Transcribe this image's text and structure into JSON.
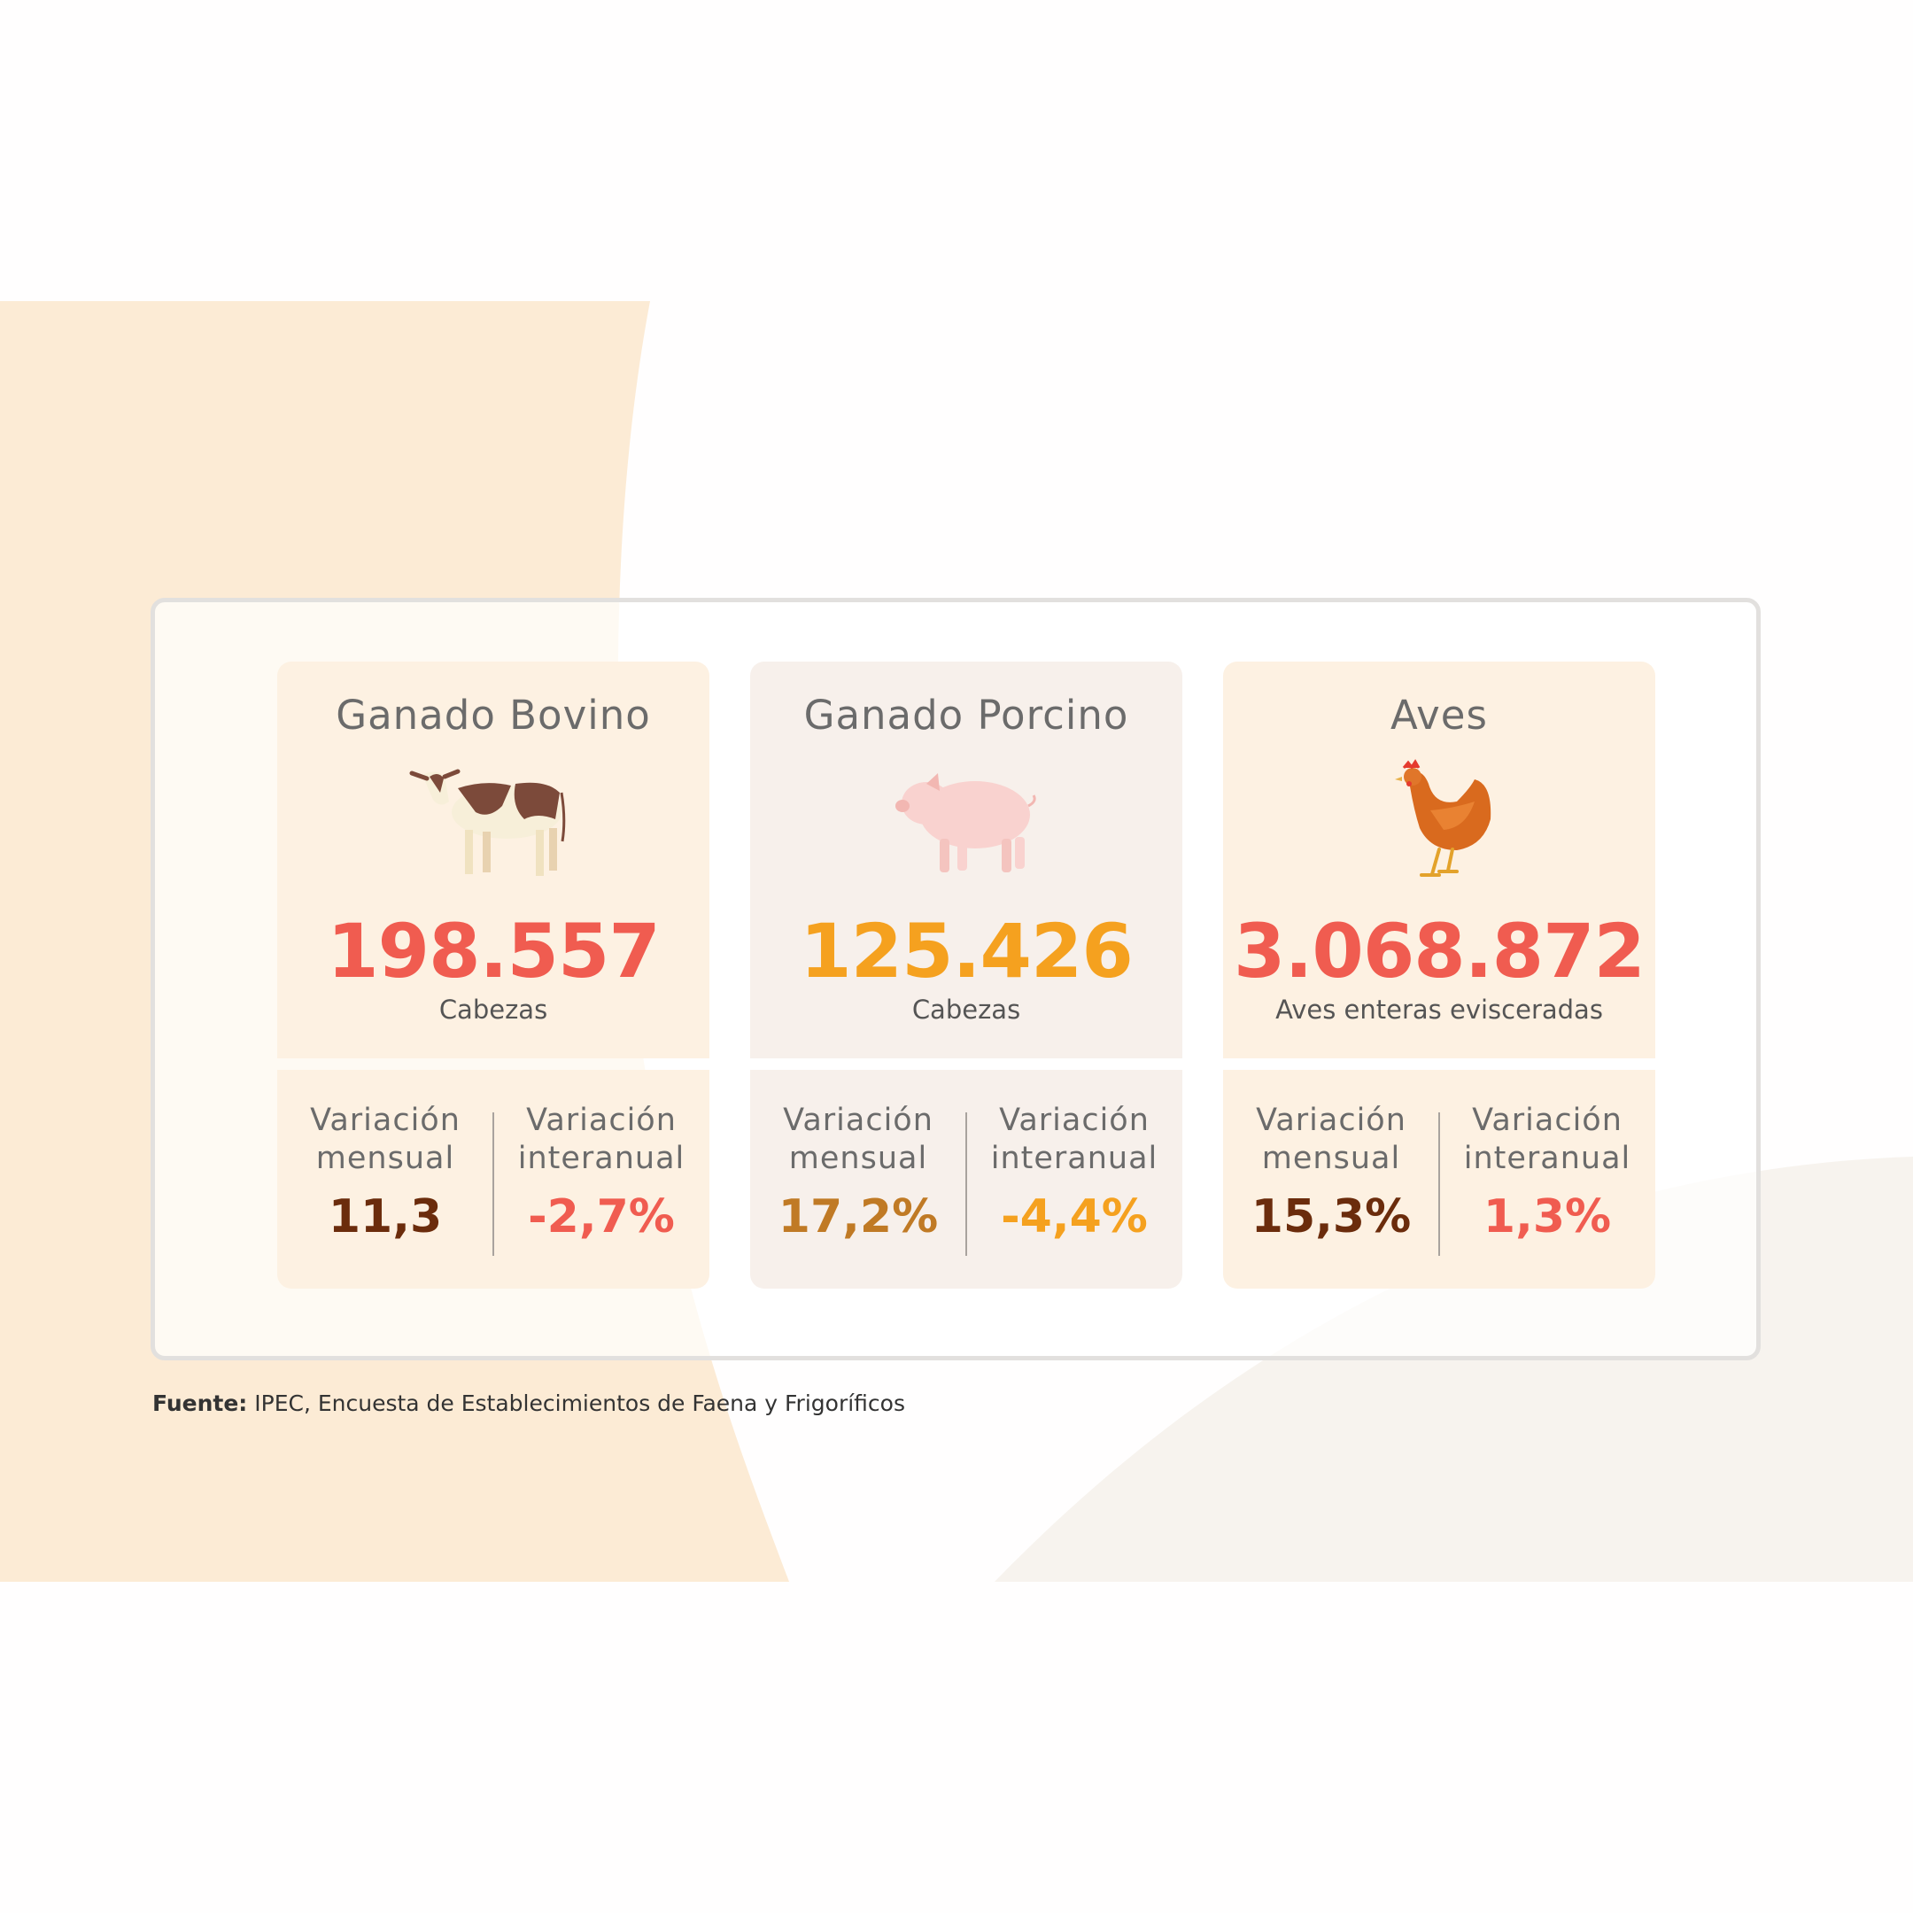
{
  "colors": {
    "accent_red": "#f05c50",
    "accent_orange": "#f5a11f",
    "brown": "#6b2c0c",
    "brown_light": "#c07a25",
    "card_peach": "#fdf1e2",
    "card_pink": "#f7f0eb",
    "band": "#fcebd5"
  },
  "cards": [
    {
      "title": "Ganado Bovino",
      "icon": "cow-icon",
      "value": "198.557",
      "unit": "Cabezas",
      "monthly_label_1": "Variación",
      "monthly_label_2": "mensual",
      "monthly_value": "11,3",
      "yearly_label_1": "Variación",
      "yearly_label_2": "interanual",
      "yearly_value": "-2,7%"
    },
    {
      "title": "Ganado Porcino",
      "icon": "pig-icon",
      "value": "125.426",
      "unit": "Cabezas",
      "monthly_label_1": "Variación",
      "monthly_label_2": "mensual",
      "monthly_value": "17,2%",
      "yearly_label_1": "Variación",
      "yearly_label_2": "interanual",
      "yearly_value": "-4,4%"
    },
    {
      "title": "Aves",
      "icon": "hen-icon",
      "value": "3.068.872",
      "unit": "Aves enteras evisceradas",
      "monthly_label_1": "Variación",
      "monthly_label_2": "mensual",
      "monthly_value": "15,3%",
      "yearly_label_1": "Variación",
      "yearly_label_2": "interanual",
      "yearly_value": "1,3%"
    }
  ],
  "source": {
    "label": "Fuente:",
    "text": " IPEC, Encuesta de Establecimientos de Faena y Frigoríficos"
  }
}
